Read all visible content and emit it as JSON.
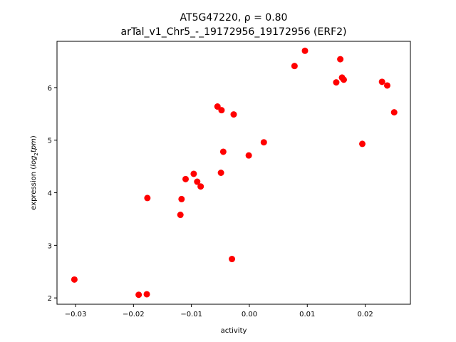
{
  "chart_data": {
    "type": "scatter",
    "title_line1": "AT5G47220, ρ = 0.80",
    "title_line2": "arTal_v1_Chr5_-_19172956_19172956 (ERF2)",
    "xlabel": "activity",
    "ylabel_prefix": "expression (",
    "ylabel_log": "log",
    "ylabel_sub": "2",
    "ylabel_tpm": "tpm",
    "ylabel_suffix": ")",
    "xlim": [
      -0.0332,
      0.0278
    ],
    "ylim": [
      1.88,
      6.88
    ],
    "x_ticks": [
      -0.03,
      -0.02,
      -0.01,
      0.0,
      0.01,
      0.02
    ],
    "x_tick_labels": [
      "−0.03",
      "−0.02",
      "−0.01",
      "0.00",
      "0.01",
      "0.02"
    ],
    "y_ticks": [
      2,
      3,
      4,
      5,
      6
    ],
    "y_tick_labels": [
      "2",
      "3",
      "4",
      "5",
      "6"
    ],
    "grid": false,
    "marker_color": "#ff0000",
    "points": [
      {
        "x": -0.0302,
        "y": 2.35
      },
      {
        "x": -0.0191,
        "y": 2.06
      },
      {
        "x": -0.0177,
        "y": 2.07
      },
      {
        "x": -0.0176,
        "y": 3.9
      },
      {
        "x": -0.0119,
        "y": 3.58
      },
      {
        "x": -0.0117,
        "y": 3.88
      },
      {
        "x": -0.011,
        "y": 4.26
      },
      {
        "x": -0.0096,
        "y": 4.36
      },
      {
        "x": -0.009,
        "y": 4.21
      },
      {
        "x": -0.0084,
        "y": 4.12
      },
      {
        "x": -0.0055,
        "y": 5.64
      },
      {
        "x": -0.0048,
        "y": 5.57
      },
      {
        "x": -0.0049,
        "y": 4.38
      },
      {
        "x": -0.0045,
        "y": 4.78
      },
      {
        "x": -0.003,
        "y": 2.74
      },
      {
        "x": -0.0027,
        "y": 5.49
      },
      {
        "x": -0.0001,
        "y": 4.71
      },
      {
        "x": 0.0025,
        "y": 4.96
      },
      {
        "x": 0.0078,
        "y": 6.41
      },
      {
        "x": 0.0096,
        "y": 6.7
      },
      {
        "x": 0.015,
        "y": 6.1
      },
      {
        "x": 0.0157,
        "y": 6.54
      },
      {
        "x": 0.016,
        "y": 6.19
      },
      {
        "x": 0.0163,
        "y": 6.15
      },
      {
        "x": 0.0195,
        "y": 4.93
      },
      {
        "x": 0.0229,
        "y": 6.11
      },
      {
        "x": 0.0238,
        "y": 6.04
      },
      {
        "x": 0.025,
        "y": 5.53
      }
    ]
  }
}
